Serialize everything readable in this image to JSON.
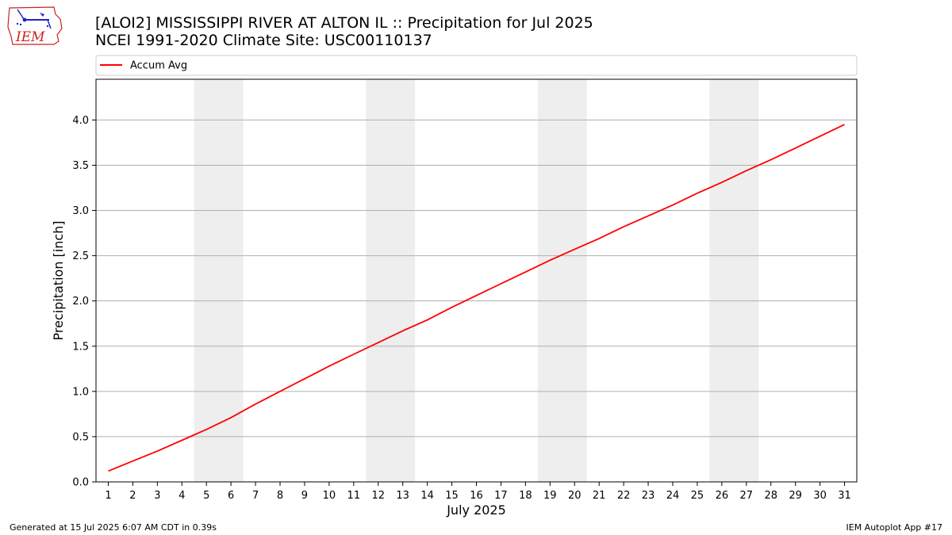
{
  "header": {
    "title_line1": "[ALOI2] MISSISSIPPI RIVER AT ALTON  IL :: Precipitation for Jul 2025",
    "title_line2": "NCEI 1991-2020 Climate Site: USC00110137"
  },
  "logo": {
    "text": "IEM",
    "icon": "iem-iowa-state-logo"
  },
  "footer": {
    "left": "Generated at 15 Jul 2025 6:07 AM CDT in 0.39s",
    "right": "IEM Autoplot App #17"
  },
  "colors": {
    "line": "#ff0000",
    "weekend_band": "#eeeeee",
    "grid": "#b0b0b0",
    "logo": "#cc2222"
  },
  "chart_data": {
    "type": "line",
    "xlabel": "July 2025",
    "ylabel": "Precipitation [inch]",
    "x": [
      1,
      2,
      3,
      4,
      5,
      6,
      7,
      8,
      9,
      10,
      11,
      12,
      13,
      14,
      15,
      16,
      17,
      18,
      19,
      20,
      21,
      22,
      23,
      24,
      25,
      26,
      27,
      28,
      29,
      30,
      31
    ],
    "xlim": [
      0.5,
      31.5
    ],
    "ylim": [
      0,
      4.45
    ],
    "yticks": [
      0.0,
      0.5,
      1.0,
      1.5,
      2.0,
      2.5,
      3.0,
      3.5,
      4.0
    ],
    "ytick_labels": [
      "0.0",
      "0.5",
      "1.0",
      "1.5",
      "2.0",
      "2.5",
      "3.0",
      "3.5",
      "4.0"
    ],
    "xtick_labels": [
      "1",
      "2",
      "3",
      "4",
      "5",
      "6",
      "7",
      "8",
      "9",
      "10",
      "11",
      "12",
      "13",
      "14",
      "15",
      "16",
      "17",
      "18",
      "19",
      "20",
      "21",
      "22",
      "23",
      "24",
      "25",
      "26",
      "27",
      "28",
      "29",
      "30",
      "31"
    ],
    "grid": "horizontal",
    "legend_position": "top",
    "weekend_bands": [
      [
        4.5,
        6.5
      ],
      [
        11.5,
        13.5
      ],
      [
        18.5,
        20.5
      ],
      [
        25.5,
        27.5
      ]
    ],
    "series": [
      {
        "name": "Accum Avg",
        "color": "#ff0000",
        "values": [
          0.12,
          0.23,
          0.34,
          0.46,
          0.58,
          0.71,
          0.86,
          1.0,
          1.14,
          1.28,
          1.41,
          1.54,
          1.67,
          1.79,
          1.93,
          2.06,
          2.19,
          2.32,
          2.45,
          2.57,
          2.69,
          2.82,
          2.94,
          3.06,
          3.19,
          3.31,
          3.44,
          3.56,
          3.69,
          3.82,
          3.95
        ]
      }
    ]
  }
}
